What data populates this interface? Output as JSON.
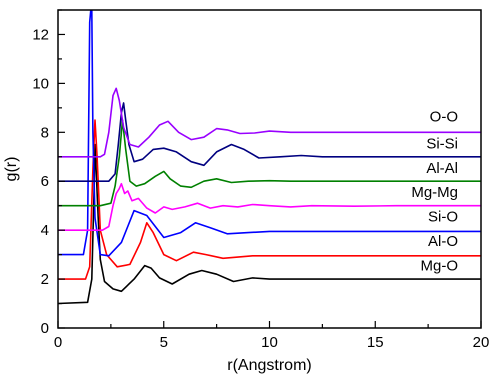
{
  "chart_data": {
    "type": "line",
    "xlabel": "r(Angstrom)",
    "ylabel": "g(r)",
    "xlim": [
      0,
      20
    ],
    "ylim": [
      0,
      13
    ],
    "x_ticks": [
      0,
      5,
      10,
      15,
      20
    ],
    "y_ticks": [
      0,
      2,
      4,
      6,
      8,
      10,
      12
    ],
    "grid": false,
    "legend": "none (series labels printed at right end of curves)",
    "series": [
      {
        "name": "Mg-O",
        "color": "#000000",
        "label_y": 2.55,
        "x": [
          0,
          1.4,
          1.6,
          1.7,
          1.75,
          1.8,
          1.9,
          2.0,
          2.2,
          2.6,
          3.0,
          3.6,
          4.1,
          4.4,
          4.8,
          5.4,
          6.2,
          6.8,
          7.5,
          8.3,
          9.2,
          10.0,
          11.0,
          12.0,
          14.0,
          16.0,
          18.0,
          20.0
        ],
        "y": [
          1.0,
          1.05,
          2.0,
          5.5,
          7.5,
          6.5,
          4.5,
          2.8,
          1.9,
          1.6,
          1.5,
          2.0,
          2.55,
          2.45,
          2.05,
          1.8,
          2.2,
          2.35,
          2.2,
          1.9,
          2.05,
          2.0,
          2.0,
          2.0,
          2.0,
          2.0,
          2.0,
          2.0
        ]
      },
      {
        "name": "Al-O",
        "color": "#ff0000",
        "label_y": 3.55,
        "x": [
          0,
          1.3,
          1.5,
          1.65,
          1.75,
          1.85,
          2.0,
          2.3,
          2.8,
          3.4,
          3.9,
          4.2,
          4.5,
          5.0,
          5.6,
          6.4,
          7.0,
          7.8,
          8.5,
          9.2,
          10.0,
          11.0,
          12.0,
          14.0,
          16.0,
          18.0,
          20.0
        ],
        "y": [
          2.0,
          2.0,
          2.5,
          6.5,
          8.5,
          7.0,
          4.0,
          3.0,
          2.5,
          2.6,
          3.5,
          4.3,
          3.9,
          3.0,
          2.75,
          3.1,
          3.0,
          2.85,
          2.9,
          2.95,
          2.95,
          2.95,
          2.95,
          2.95,
          2.95,
          2.95,
          2.95
        ]
      },
      {
        "name": "Si-O",
        "color": "#0000ff",
        "label_y": 4.55,
        "x": [
          0,
          1.2,
          1.4,
          1.5,
          1.55,
          1.6,
          1.65,
          1.75,
          2.0,
          2.4,
          3.0,
          3.6,
          4.2,
          5.0,
          5.8,
          6.5,
          7.2,
          8.0,
          9.0,
          10.0,
          11.0,
          12.0,
          14.0,
          16.0,
          18.0,
          20.0
        ],
        "y": [
          3.0,
          3.0,
          4.0,
          12.5,
          13.0,
          13.0,
          8.0,
          4.5,
          3.0,
          2.95,
          3.5,
          4.8,
          4.6,
          3.7,
          3.9,
          4.3,
          4.1,
          3.85,
          3.9,
          3.95,
          3.95,
          3.95,
          3.95,
          3.95,
          3.95,
          3.95
        ]
      },
      {
        "name": "Mg-Mg",
        "color": "#ff00ff",
        "label_y": 5.55,
        "x": [
          0,
          1.8,
          2.1,
          2.4,
          2.6,
          2.75,
          2.9,
          3.0,
          3.15,
          3.3,
          3.5,
          3.8,
          4.2,
          4.6,
          5.0,
          5.4,
          6.0,
          6.6,
          7.2,
          7.8,
          8.5,
          9.2,
          10.0,
          11.0,
          12.0,
          14.0,
          16.0,
          18.0,
          20.0
        ],
        "y": [
          4.0,
          4.0,
          4.0,
          4.15,
          5.0,
          5.5,
          5.7,
          5.9,
          5.5,
          5.6,
          5.2,
          5.3,
          4.9,
          4.7,
          4.95,
          4.85,
          4.95,
          5.1,
          4.9,
          5.0,
          4.95,
          5.05,
          5.0,
          4.95,
          5.0,
          4.98,
          5.0,
          5.0,
          5.0
        ]
      },
      {
        "name": "Al-Al",
        "color": "#008000",
        "label_y": 6.55,
        "x": [
          0,
          2.0,
          2.5,
          2.7,
          2.9,
          3.05,
          3.2,
          3.4,
          3.7,
          4.1,
          4.6,
          5.0,
          5.3,
          5.8,
          6.3,
          6.9,
          7.5,
          8.2,
          9.0,
          10.0,
          11.0,
          12.0,
          14.0,
          16.0,
          18.0,
          20.0
        ],
        "y": [
          5.0,
          5.0,
          5.1,
          5.8,
          7.0,
          8.5,
          7.3,
          6.0,
          5.8,
          5.9,
          6.2,
          6.4,
          6.1,
          5.8,
          5.75,
          6.0,
          6.1,
          5.95,
          6.0,
          6.02,
          6.0,
          6.0,
          6.0,
          6.0,
          6.0,
          6.0
        ]
      },
      {
        "name": "Si-Si",
        "color": "#000080",
        "label_y": 7.55,
        "x": [
          0,
          2.4,
          2.7,
          2.85,
          3.0,
          3.1,
          3.2,
          3.35,
          3.6,
          4.0,
          4.5,
          5.0,
          5.6,
          6.3,
          6.9,
          7.5,
          8.2,
          8.8,
          9.5,
          10.5,
          11.5,
          12.5,
          14.0,
          16.0,
          18.0,
          20.0
        ],
        "y": [
          6.0,
          6.0,
          6.3,
          7.5,
          8.8,
          9.2,
          8.5,
          7.5,
          6.8,
          6.9,
          7.3,
          7.35,
          7.2,
          6.8,
          6.65,
          7.2,
          7.5,
          7.3,
          6.95,
          7.0,
          7.05,
          7.0,
          7.0,
          7.0,
          7.0,
          7.0
        ]
      },
      {
        "name": "O-O",
        "color": "#9900ff",
        "label_y": 8.65,
        "x": [
          0,
          2.0,
          2.2,
          2.4,
          2.6,
          2.75,
          2.9,
          3.1,
          3.4,
          3.8,
          4.3,
          4.8,
          5.2,
          5.7,
          6.3,
          6.9,
          7.5,
          8.0,
          8.6,
          9.3,
          10.0,
          11.0,
          12.0,
          14.0,
          16.0,
          18.0,
          20.0
        ],
        "y": [
          7.0,
          7.0,
          7.1,
          8.0,
          9.5,
          9.8,
          9.3,
          8.2,
          7.5,
          7.4,
          7.8,
          8.3,
          8.45,
          8.0,
          7.7,
          7.8,
          8.15,
          8.1,
          7.95,
          7.97,
          8.05,
          8.0,
          8.0,
          8.0,
          8.0,
          8.0,
          8.0
        ]
      }
    ]
  }
}
